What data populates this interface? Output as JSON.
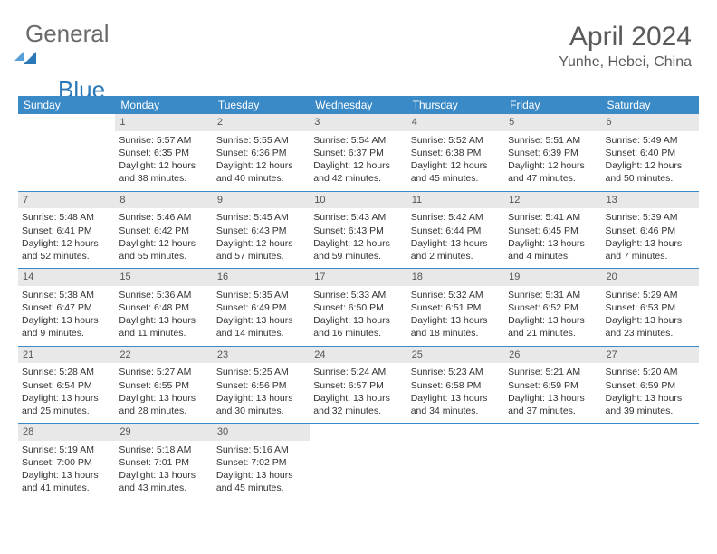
{
  "logo": {
    "part1": "General",
    "part2": "Blue"
  },
  "title": "April 2024",
  "location": "Yunhe, Hebei, China",
  "colors": {
    "header_bg": "#3a8ac8",
    "header_text": "#ffffff",
    "daynum_bg": "#e8e8e8",
    "text": "#333333",
    "rule": "#3a8ac8",
    "background": "#ffffff"
  },
  "typography": {
    "title_fontsize": 30,
    "subtitle_fontsize": 16,
    "dayname_fontsize": 12,
    "cell_fontsize": 10.5
  },
  "daynames": [
    "Sunday",
    "Monday",
    "Tuesday",
    "Wednesday",
    "Thursday",
    "Friday",
    "Saturday"
  ],
  "weeks": [
    [
      {
        "n": "",
        "sr": "",
        "ss": "",
        "dl1": "",
        "dl2": ""
      },
      {
        "n": "1",
        "sr": "Sunrise: 5:57 AM",
        "ss": "Sunset: 6:35 PM",
        "dl1": "Daylight: 12 hours",
        "dl2": "and 38 minutes."
      },
      {
        "n": "2",
        "sr": "Sunrise: 5:55 AM",
        "ss": "Sunset: 6:36 PM",
        "dl1": "Daylight: 12 hours",
        "dl2": "and 40 minutes."
      },
      {
        "n": "3",
        "sr": "Sunrise: 5:54 AM",
        "ss": "Sunset: 6:37 PM",
        "dl1": "Daylight: 12 hours",
        "dl2": "and 42 minutes."
      },
      {
        "n": "4",
        "sr": "Sunrise: 5:52 AM",
        "ss": "Sunset: 6:38 PM",
        "dl1": "Daylight: 12 hours",
        "dl2": "and 45 minutes."
      },
      {
        "n": "5",
        "sr": "Sunrise: 5:51 AM",
        "ss": "Sunset: 6:39 PM",
        "dl1": "Daylight: 12 hours",
        "dl2": "and 47 minutes."
      },
      {
        "n": "6",
        "sr": "Sunrise: 5:49 AM",
        "ss": "Sunset: 6:40 PM",
        "dl1": "Daylight: 12 hours",
        "dl2": "and 50 minutes."
      }
    ],
    [
      {
        "n": "7",
        "sr": "Sunrise: 5:48 AM",
        "ss": "Sunset: 6:41 PM",
        "dl1": "Daylight: 12 hours",
        "dl2": "and 52 minutes."
      },
      {
        "n": "8",
        "sr": "Sunrise: 5:46 AM",
        "ss": "Sunset: 6:42 PM",
        "dl1": "Daylight: 12 hours",
        "dl2": "and 55 minutes."
      },
      {
        "n": "9",
        "sr": "Sunrise: 5:45 AM",
        "ss": "Sunset: 6:43 PM",
        "dl1": "Daylight: 12 hours",
        "dl2": "and 57 minutes."
      },
      {
        "n": "10",
        "sr": "Sunrise: 5:43 AM",
        "ss": "Sunset: 6:43 PM",
        "dl1": "Daylight: 12 hours",
        "dl2": "and 59 minutes."
      },
      {
        "n": "11",
        "sr": "Sunrise: 5:42 AM",
        "ss": "Sunset: 6:44 PM",
        "dl1": "Daylight: 13 hours",
        "dl2": "and 2 minutes."
      },
      {
        "n": "12",
        "sr": "Sunrise: 5:41 AM",
        "ss": "Sunset: 6:45 PM",
        "dl1": "Daylight: 13 hours",
        "dl2": "and 4 minutes."
      },
      {
        "n": "13",
        "sr": "Sunrise: 5:39 AM",
        "ss": "Sunset: 6:46 PM",
        "dl1": "Daylight: 13 hours",
        "dl2": "and 7 minutes."
      }
    ],
    [
      {
        "n": "14",
        "sr": "Sunrise: 5:38 AM",
        "ss": "Sunset: 6:47 PM",
        "dl1": "Daylight: 13 hours",
        "dl2": "and 9 minutes."
      },
      {
        "n": "15",
        "sr": "Sunrise: 5:36 AM",
        "ss": "Sunset: 6:48 PM",
        "dl1": "Daylight: 13 hours",
        "dl2": "and 11 minutes."
      },
      {
        "n": "16",
        "sr": "Sunrise: 5:35 AM",
        "ss": "Sunset: 6:49 PM",
        "dl1": "Daylight: 13 hours",
        "dl2": "and 14 minutes."
      },
      {
        "n": "17",
        "sr": "Sunrise: 5:33 AM",
        "ss": "Sunset: 6:50 PM",
        "dl1": "Daylight: 13 hours",
        "dl2": "and 16 minutes."
      },
      {
        "n": "18",
        "sr": "Sunrise: 5:32 AM",
        "ss": "Sunset: 6:51 PM",
        "dl1": "Daylight: 13 hours",
        "dl2": "and 18 minutes."
      },
      {
        "n": "19",
        "sr": "Sunrise: 5:31 AM",
        "ss": "Sunset: 6:52 PM",
        "dl1": "Daylight: 13 hours",
        "dl2": "and 21 minutes."
      },
      {
        "n": "20",
        "sr": "Sunrise: 5:29 AM",
        "ss": "Sunset: 6:53 PM",
        "dl1": "Daylight: 13 hours",
        "dl2": "and 23 minutes."
      }
    ],
    [
      {
        "n": "21",
        "sr": "Sunrise: 5:28 AM",
        "ss": "Sunset: 6:54 PM",
        "dl1": "Daylight: 13 hours",
        "dl2": "and 25 minutes."
      },
      {
        "n": "22",
        "sr": "Sunrise: 5:27 AM",
        "ss": "Sunset: 6:55 PM",
        "dl1": "Daylight: 13 hours",
        "dl2": "and 28 minutes."
      },
      {
        "n": "23",
        "sr": "Sunrise: 5:25 AM",
        "ss": "Sunset: 6:56 PM",
        "dl1": "Daylight: 13 hours",
        "dl2": "and 30 minutes."
      },
      {
        "n": "24",
        "sr": "Sunrise: 5:24 AM",
        "ss": "Sunset: 6:57 PM",
        "dl1": "Daylight: 13 hours",
        "dl2": "and 32 minutes."
      },
      {
        "n": "25",
        "sr": "Sunrise: 5:23 AM",
        "ss": "Sunset: 6:58 PM",
        "dl1": "Daylight: 13 hours",
        "dl2": "and 34 minutes."
      },
      {
        "n": "26",
        "sr": "Sunrise: 5:21 AM",
        "ss": "Sunset: 6:59 PM",
        "dl1": "Daylight: 13 hours",
        "dl2": "and 37 minutes."
      },
      {
        "n": "27",
        "sr": "Sunrise: 5:20 AM",
        "ss": "Sunset: 6:59 PM",
        "dl1": "Daylight: 13 hours",
        "dl2": "and 39 minutes."
      }
    ],
    [
      {
        "n": "28",
        "sr": "Sunrise: 5:19 AM",
        "ss": "Sunset: 7:00 PM",
        "dl1": "Daylight: 13 hours",
        "dl2": "and 41 minutes."
      },
      {
        "n": "29",
        "sr": "Sunrise: 5:18 AM",
        "ss": "Sunset: 7:01 PM",
        "dl1": "Daylight: 13 hours",
        "dl2": "and 43 minutes."
      },
      {
        "n": "30",
        "sr": "Sunrise: 5:16 AM",
        "ss": "Sunset: 7:02 PM",
        "dl1": "Daylight: 13 hours",
        "dl2": "and 45 minutes."
      },
      {
        "n": "",
        "sr": "",
        "ss": "",
        "dl1": "",
        "dl2": ""
      },
      {
        "n": "",
        "sr": "",
        "ss": "",
        "dl1": "",
        "dl2": ""
      },
      {
        "n": "",
        "sr": "",
        "ss": "",
        "dl1": "",
        "dl2": ""
      },
      {
        "n": "",
        "sr": "",
        "ss": "",
        "dl1": "",
        "dl2": ""
      }
    ]
  ]
}
